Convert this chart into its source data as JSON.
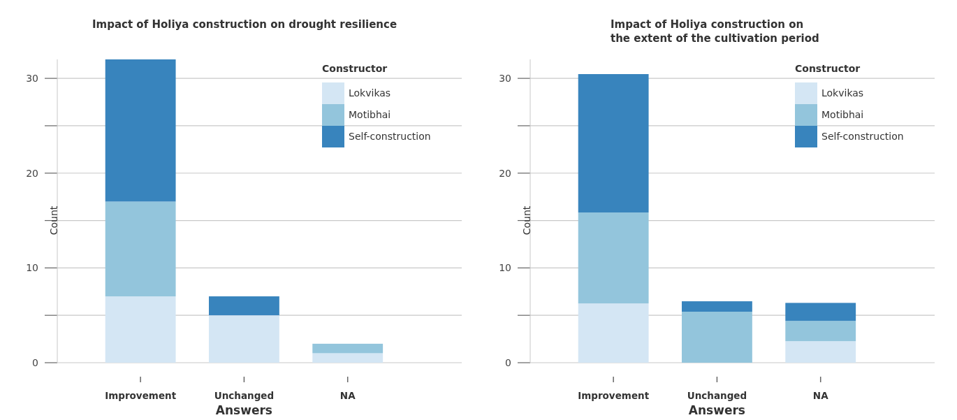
{
  "chart_data": [
    {
      "type": "bar",
      "stacked": true,
      "title": "Impact of Holiya construction on drought resilience",
      "xlabel": "Answers",
      "ylabel": "Count",
      "legend_title": "Constructor",
      "legend": "top right",
      "grid": "y",
      "categories": [
        "Improvement",
        "Unchanged",
        "NA"
      ],
      "ylim": [
        0,
        32
      ],
      "yticks": [
        0,
        {
          "value": 5,
          "label": null
        },
        10,
        {
          "value": 15,
          "label": null
        },
        20,
        {
          "value": 25,
          "label": null
        },
        30
      ],
      "series": [
        {
          "name": "Lokvikas",
          "color": "#d4e6f4",
          "values": [
            7,
            5,
            1
          ]
        },
        {
          "name": "Motibhai",
          "color": "#93c5dc",
          "values": [
            10,
            0,
            1
          ]
        },
        {
          "name": "Self-construction",
          "color": "#3884bd",
          "values": [
            15,
            2,
            0
          ]
        }
      ]
    },
    {
      "type": "bar",
      "stacked": true,
      "title": "Impact of Holiya construction on\nthe extent of the cultivation period",
      "xlabel": "Answers",
      "ylabel": "Count",
      "legend_title": "Constructor",
      "legend": "top right",
      "grid": "y",
      "categories": [
        "Improvement",
        "Unchanged",
        "NA"
      ],
      "ylim": [
        0,
        32
      ],
      "yticks": [
        0,
        {
          "value": 5,
          "label": null
        },
        10,
        {
          "value": 15,
          "label": null
        },
        20,
        {
          "value": 25,
          "label": null
        },
        30
      ],
      "series": [
        {
          "name": "Lokvikas",
          "color": "#d4e6f4",
          "values": [
            6.25,
            0,
            2.27
          ]
        },
        {
          "name": "Motibhai",
          "color": "#93c5dc",
          "values": [
            9.6,
            5.38,
            2.14
          ]
        },
        {
          "name": "Self-construction",
          "color": "#3884bd",
          "values": [
            14.6,
            1.1,
            1.9
          ]
        }
      ]
    }
  ]
}
